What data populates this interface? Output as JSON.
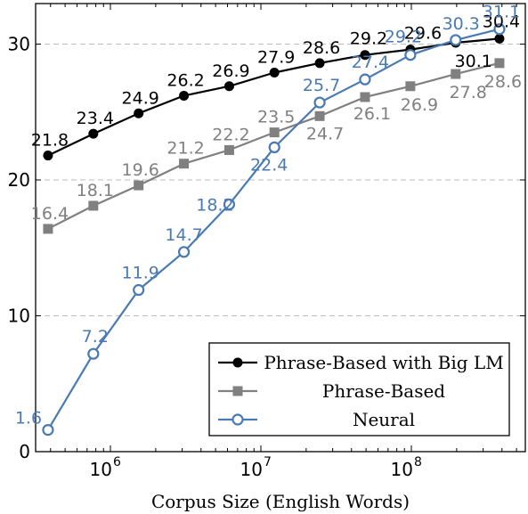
{
  "chart_data": {
    "type": "line",
    "xscale": "log",
    "xlabel": "Corpus Size (English Words)",
    "ylabel": "",
    "ylim": [
      0,
      33
    ],
    "yticks": [
      0,
      10,
      20,
      30
    ],
    "ytick_labels": [
      "0",
      "10",
      "20",
      "30"
    ],
    "xticks": [
      1000000,
      10000000,
      100000000
    ],
    "xtick_labels": [
      {
        "base": "10",
        "exp": "6"
      },
      {
        "base": "10",
        "exp": "7"
      },
      {
        "base": "10",
        "exp": "8"
      }
    ],
    "grid": "horizontal dashed",
    "legend_position": "lower-right",
    "x": [
      385000,
      770000,
      1540000,
      3080000,
      6160000,
      12300000,
      24600000,
      49200000,
      98500000,
      197000000,
      385000000
    ],
    "series": [
      {
        "name": "Phrase-Based with Big LM",
        "color": "#000000",
        "marker": "filled-circle",
        "values": [
          21.8,
          23.4,
          24.9,
          26.2,
          26.9,
          27.9,
          28.6,
          29.2,
          29.6,
          30.1,
          30.4
        ],
        "labels": [
          "21.8",
          "23.4",
          "24.9",
          "26.2",
          "26.9",
          "27.9",
          "28.6",
          "29.2",
          "29.6",
          "30.1",
          "30.4"
        ]
      },
      {
        "name": "Phrase-Based",
        "color": "#808080",
        "marker": "filled-square",
        "values": [
          16.4,
          18.1,
          19.6,
          21.2,
          22.2,
          23.5,
          24.7,
          26.1,
          26.9,
          27.8,
          28.6
        ],
        "labels": [
          "16.4",
          "18.1",
          "19.6",
          "21.2",
          "22.2",
          "23.5",
          "24.7",
          "26.1",
          "26.9",
          "27.8",
          "28.6"
        ]
      },
      {
        "name": "Neural",
        "color": "#4a7ab5",
        "marker": "open-circle",
        "values": [
          1.6,
          7.2,
          11.9,
          14.7,
          18.2,
          22.4,
          25.7,
          27.4,
          29.2,
          30.3,
          31.1
        ],
        "labels": [
          "1.6",
          "7.2",
          "11.9",
          "14.7",
          "18.2",
          "22.4",
          "25.7",
          "27.4",
          "29.2",
          "30.3",
          "31.1"
        ]
      }
    ]
  }
}
